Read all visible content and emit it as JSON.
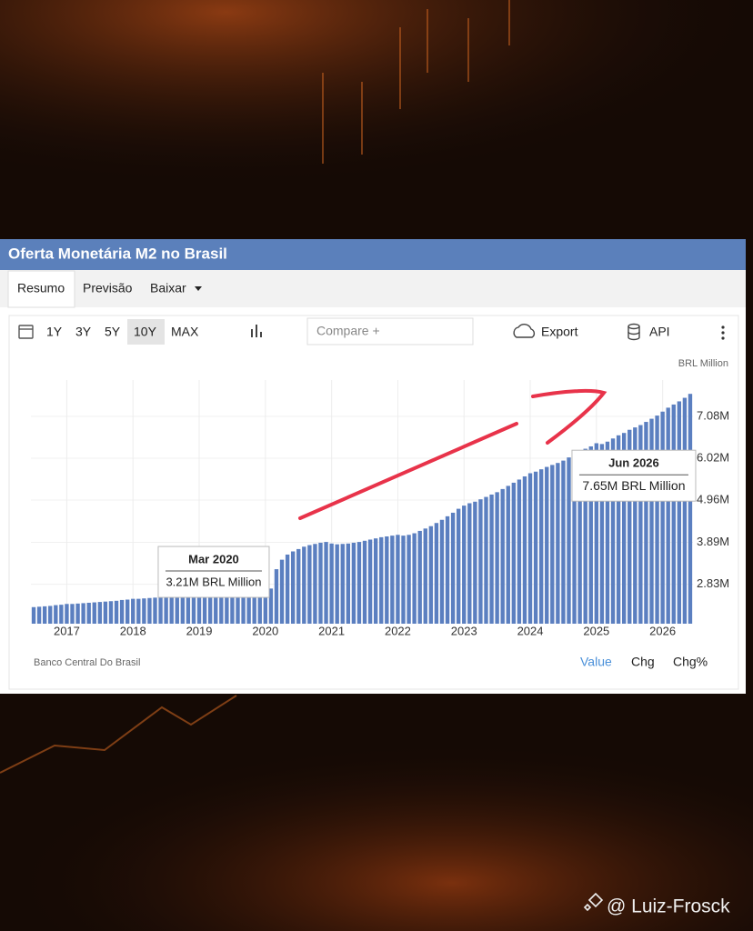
{
  "ui": {
    "tabs": [
      "Resumo",
      "Previsão",
      "Baixar"
    ],
    "ranges": [
      "1Y",
      "3Y",
      "5Y",
      "10Y",
      "MAX"
    ],
    "compare": "Compare +",
    "export": "Export",
    "api": "API",
    "unit": "BRL Million",
    "source": "Banco Central Do Brasil",
    "modes": [
      "Value",
      "Chg",
      "Chg%"
    ],
    "watermark": "@ Luiz-Frosck"
  },
  "chart_data": {
    "type": "bar",
    "title": "Oferta Monetária M2 no Brasil",
    "color": "#5b7fc0",
    "grid": true,
    "categories": [
      "Jul 2016",
      "Aug 2016",
      "Sep 2016",
      "Oct 2016",
      "Nov 2016",
      "Dec 2016",
      "Jan 2017",
      "Feb 2017",
      "Mar 2017",
      "Apr 2017",
      "May 2017",
      "Jun 2017",
      "Jul 2017",
      "Aug 2017",
      "Sep 2017",
      "Oct 2017",
      "Nov 2017",
      "Dec 2017",
      "Jan 2018",
      "Feb 2018",
      "Mar 2018",
      "Apr 2018",
      "May 2018",
      "Jun 2018",
      "Jul 2018",
      "Aug 2018",
      "Sep 2018",
      "Oct 2018",
      "Nov 2018",
      "Dec 2018",
      "Jan 2019",
      "Feb 2019",
      "Mar 2019",
      "Apr 2019",
      "May 2019",
      "Jun 2019",
      "Jul 2019",
      "Aug 2019",
      "Sep 2019",
      "Oct 2019",
      "Nov 2019",
      "Dec 2019",
      "Jan 2020",
      "Feb 2020",
      "Mar 2020",
      "Apr 2020",
      "May 2020",
      "Jun 2020",
      "Jul 2020",
      "Aug 2020",
      "Sep 2020",
      "Oct 2020",
      "Nov 2020",
      "Dec 2020",
      "Jan 2021",
      "Feb 2021",
      "Mar 2021",
      "Apr 2021",
      "May 2021",
      "Jun 2021",
      "Jul 2021",
      "Aug 2021",
      "Sep 2021",
      "Oct 2021",
      "Nov 2021",
      "Dec 2021",
      "Jan 2022",
      "Feb 2022",
      "Mar 2022",
      "Apr 2022",
      "May 2022",
      "Jun 2022",
      "Jul 2022",
      "Aug 2022",
      "Sep 2022",
      "Oct 2022",
      "Nov 2022",
      "Dec 2022",
      "Jan 2023",
      "Feb 2023",
      "Mar 2023",
      "Apr 2023",
      "May 2023",
      "Jun 2023",
      "Jul 2023",
      "Aug 2023",
      "Sep 2023",
      "Oct 2023",
      "Nov 2023",
      "Dec 2023",
      "Jan 2024",
      "Feb 2024",
      "Mar 2024",
      "Apr 2024",
      "May 2024",
      "Jun 2024",
      "Jul 2024",
      "Aug 2024",
      "Sep 2024",
      "Oct 2024",
      "Nov 2024",
      "Dec 2024",
      "Jan 2025",
      "Feb 2025",
      "Mar 2025",
      "Apr 2025",
      "May 2025",
      "Jun 2025",
      "Jul 2025",
      "Aug 2025",
      "Sep 2025",
      "Oct 2025",
      "Nov 2025",
      "Dec 2025",
      "Jan 2026",
      "Feb 2026",
      "Mar 2026",
      "Apr 2026",
      "May 2026",
      "Jun 2026"
    ],
    "values": [
      2250000,
      2260000,
      2270000,
      2280000,
      2300000,
      2310000,
      2330000,
      2330000,
      2340000,
      2350000,
      2360000,
      2370000,
      2380000,
      2390000,
      2400000,
      2410000,
      2430000,
      2440000,
      2460000,
      2460000,
      2470000,
      2480000,
      2490000,
      2500000,
      2510000,
      2520000,
      2530000,
      2540000,
      2550000,
      2570000,
      2580000,
      2580000,
      2590000,
      2600000,
      2610000,
      2620000,
      2630000,
      2640000,
      2650000,
      2660000,
      2670000,
      2680000,
      2680000,
      2720000,
      3210000,
      3450000,
      3580000,
      3660000,
      3720000,
      3780000,
      3820000,
      3850000,
      3880000,
      3900000,
      3860000,
      3840000,
      3850000,
      3860000,
      3880000,
      3900000,
      3930000,
      3960000,
      3990000,
      4020000,
      4040000,
      4060000,
      4080000,
      4060000,
      4080000,
      4120000,
      4180000,
      4240000,
      4300000,
      4380000,
      4460000,
      4550000,
      4640000,
      4740000,
      4820000,
      4880000,
      4920000,
      4980000,
      5040000,
      5100000,
      5160000,
      5240000,
      5320000,
      5400000,
      5480000,
      5560000,
      5640000,
      5680000,
      5740000,
      5800000,
      5850000,
      5900000,
      5960000,
      6040000,
      6100000,
      6180000,
      6260000,
      6320000,
      6400000,
      6380000,
      6440000,
      6520000,
      6600000,
      6660000,
      6740000,
      6800000,
      6860000,
      6940000,
      7020000,
      7100000,
      7200000,
      7300000,
      7380000,
      7460000,
      7550000,
      7650000
    ],
    "ylim": [
      1830000,
      8000000
    ],
    "yticks": [
      {
        "value": 2830000,
        "label": "2.83M"
      },
      {
        "value": 3890000,
        "label": "3.89M"
      },
      {
        "value": 4960000,
        "label": "4.96M"
      },
      {
        "value": 6020000,
        "label": "6.02M"
      },
      {
        "value": 7080000,
        "label": "7.08M"
      }
    ],
    "xticks": [
      {
        "value": "Jan 2017",
        "label": "2017"
      },
      {
        "value": "Jan 2018",
        "label": "2018"
      },
      {
        "value": "Jan 2019",
        "label": "2019"
      },
      {
        "value": "Jan 2020",
        "label": "2020"
      },
      {
        "value": "Jan 2021",
        "label": "2021"
      },
      {
        "value": "Jan 2022",
        "label": "2022"
      },
      {
        "value": "Jan 2023",
        "label": "2023"
      },
      {
        "value": "Jan 2024",
        "label": "2024"
      },
      {
        "value": "Jan 2025",
        "label": "2025"
      },
      {
        "value": "Jan 2026",
        "label": "2026"
      }
    ],
    "annotations": [
      {
        "x": "Mar 2020",
        "text": "3.21M BRL Million"
      },
      {
        "x": "Jun 2026",
        "text": "7.65M BRL Million"
      }
    ]
  }
}
